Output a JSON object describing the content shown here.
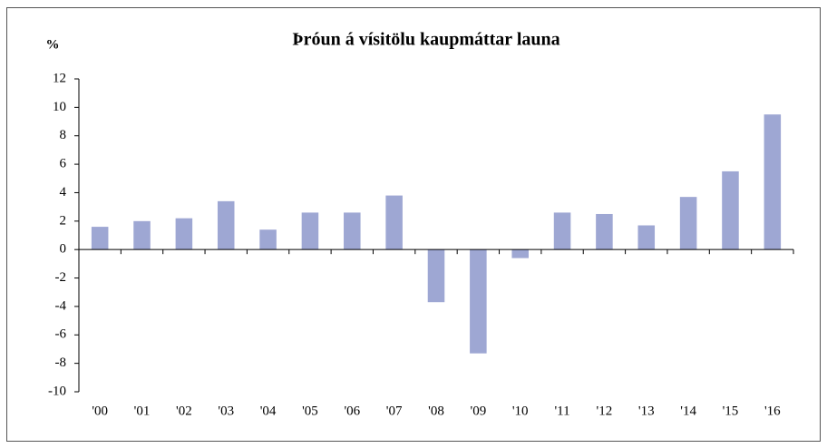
{
  "chart_data": {
    "type": "bar",
    "title": "Þróun á vísitölu kaupmáttar launa",
    "ylabel": "%",
    "categories": [
      "'00",
      "'01",
      "'02",
      "'03",
      "'04",
      "'05",
      "'06",
      "'07",
      "'08",
      "'09",
      "'10",
      "'11",
      "'12",
      "'13",
      "'14",
      "'15",
      "'16"
    ],
    "values": [
      1.6,
      2.0,
      2.2,
      3.4,
      1.4,
      2.6,
      2.6,
      3.8,
      -3.7,
      -7.3,
      -0.6,
      2.6,
      2.5,
      1.7,
      3.7,
      5.5,
      9.5
    ],
    "color": "#9ea7d3",
    "ylim": [
      -10,
      12
    ],
    "yticks": [
      -10,
      -8,
      -6,
      -4,
      -2,
      0,
      2,
      4,
      6,
      8,
      10,
      12
    ],
    "grid": false
  }
}
